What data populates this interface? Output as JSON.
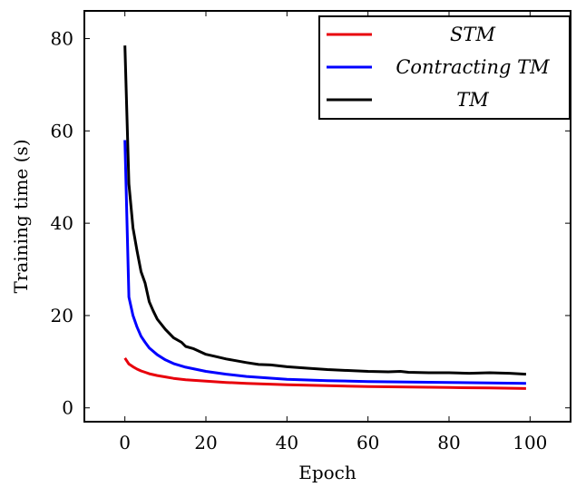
{
  "chart_data": {
    "type": "line",
    "xlabel": "Epoch",
    "ylabel": "Training time (s)",
    "xlim": [
      -10,
      110
    ],
    "ylim": [
      -3,
      86
    ],
    "xticks": [
      0,
      20,
      40,
      60,
      80,
      100
    ],
    "yticks": [
      0,
      20,
      40,
      60,
      80
    ],
    "grid": false,
    "legend_position": "top-right",
    "series": [
      {
        "name": "STM",
        "color": "#e8000b",
        "x": [
          0,
          1,
          2,
          3,
          4,
          5,
          6,
          8,
          10,
          12,
          15,
          20,
          25,
          30,
          40,
          50,
          60,
          70,
          80,
          90,
          99
        ],
        "y": [
          10.8,
          9.5,
          8.9,
          8.4,
          8.0,
          7.7,
          7.4,
          7.0,
          6.7,
          6.4,
          6.1,
          5.8,
          5.5,
          5.3,
          5.0,
          4.8,
          4.6,
          4.5,
          4.4,
          4.3,
          4.2
        ]
      },
      {
        "name": "Contracting TM",
        "color": "#0000ff",
        "x": [
          0,
          1,
          2,
          3,
          4,
          5,
          6,
          8,
          10,
          12,
          15,
          20,
          25,
          30,
          40,
          50,
          60,
          70,
          80,
          90,
          99
        ],
        "y": [
          58,
          24,
          20,
          17.5,
          15.5,
          14.2,
          13.0,
          11.5,
          10.4,
          9.6,
          8.8,
          7.9,
          7.3,
          6.8,
          6.2,
          5.9,
          5.7,
          5.6,
          5.5,
          5.4,
          5.3
        ]
      },
      {
        "name": "TM",
        "color": "#000000",
        "x": [
          0,
          1,
          2,
          3,
          4,
          5,
          6,
          7,
          8,
          10,
          12,
          14,
          15,
          17,
          20,
          22,
          25,
          30,
          33,
          36,
          40,
          45,
          50,
          55,
          60,
          65,
          68,
          70,
          75,
          80,
          85,
          90,
          95,
          99
        ],
        "y": [
          78.5,
          48.5,
          39,
          34,
          29.5,
          27,
          23,
          21,
          19.2,
          17,
          15.2,
          14.2,
          13.3,
          12.8,
          11.6,
          11.2,
          10.6,
          9.8,
          9.4,
          9.3,
          8.9,
          8.6,
          8.3,
          8.1,
          7.9,
          7.8,
          7.9,
          7.7,
          7.6,
          7.6,
          7.5,
          7.6,
          7.5,
          7.3
        ]
      }
    ]
  }
}
